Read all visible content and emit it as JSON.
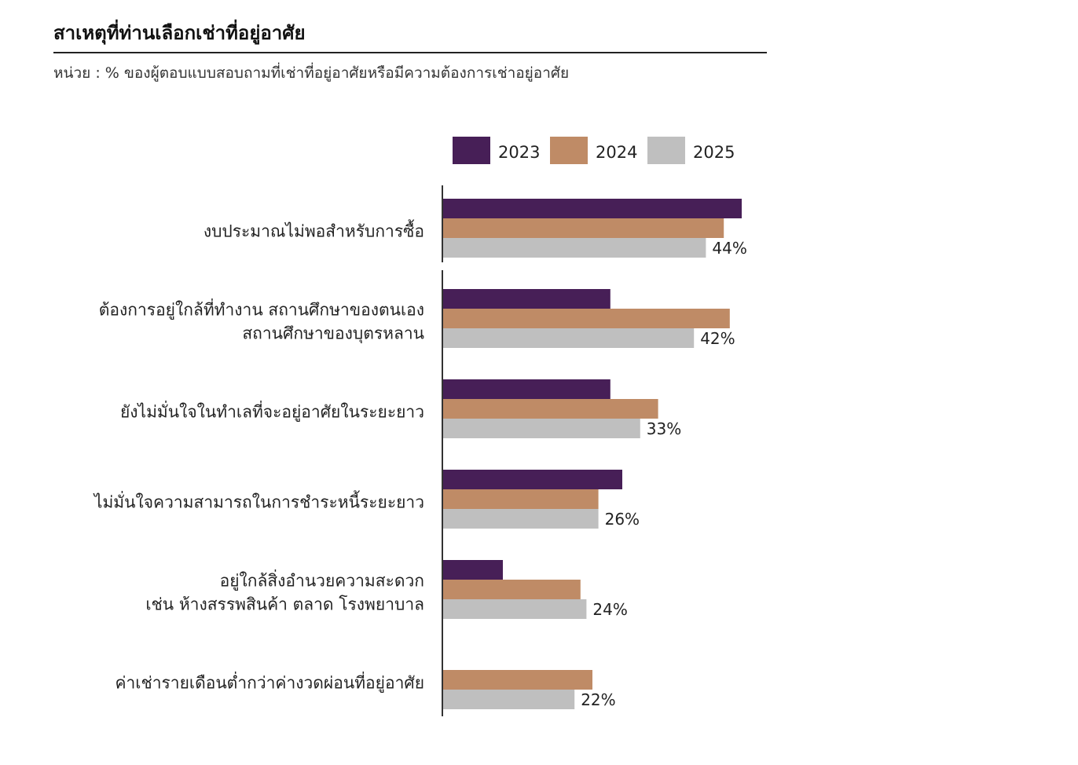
{
  "title": "สาเหตุที่ท่านเลือกเช่าที่อยู่อาศัย",
  "unit_note": "หน่วย : % ของผู้ตอบแบบสอบถามที่เช่าที่อยู่อาศัยหรือมีความต้องการเช่าอยู่อาศัย",
  "colors": {
    "2023": "#471f57",
    "2024": "#bf8b66",
    "2025": "#bfbfbf"
  },
  "chart_data": {
    "type": "bar",
    "orientation": "horizontal",
    "categories": [
      [
        "งบประมาณไม่พอสำหรับการซื้อ"
      ],
      [
        "ต้องการอยู่ใกล้ที่ทำงาน สถานศึกษาของตนเอง",
        "สถานศึกษาของบุตรหลาน"
      ],
      [
        "ยังไม่มั่นใจในทำเลที่จะอยู่อาศัยในระยะยาว"
      ],
      [
        "ไม่มั่นใจความสามารถในการชำระหนี้ระยะยาว"
      ],
      [
        "อยู่ใกล้สิ่งอำนวยความสะดวก",
        "เช่น ห้างสรรพสินค้า ตลาด โรงพยาบาล"
      ],
      [
        "ค่าเช่ารายเดือนต่ำกว่าค่างวดผ่อนที่อยู่อาศัย"
      ]
    ],
    "series": [
      {
        "name": "2023",
        "values": [
          50,
          28,
          28,
          30,
          10,
          0
        ]
      },
      {
        "name": "2024",
        "values": [
          47,
          48,
          36,
          26,
          23,
          25
        ]
      },
      {
        "name": "2025",
        "values": [
          44,
          42,
          33,
          26,
          24,
          22
        ]
      }
    ],
    "data_labels": [
      "44%",
      "42%",
      "33%",
      "26%",
      "24%",
      "22%"
    ],
    "legend": "top-right",
    "grid": false
  }
}
